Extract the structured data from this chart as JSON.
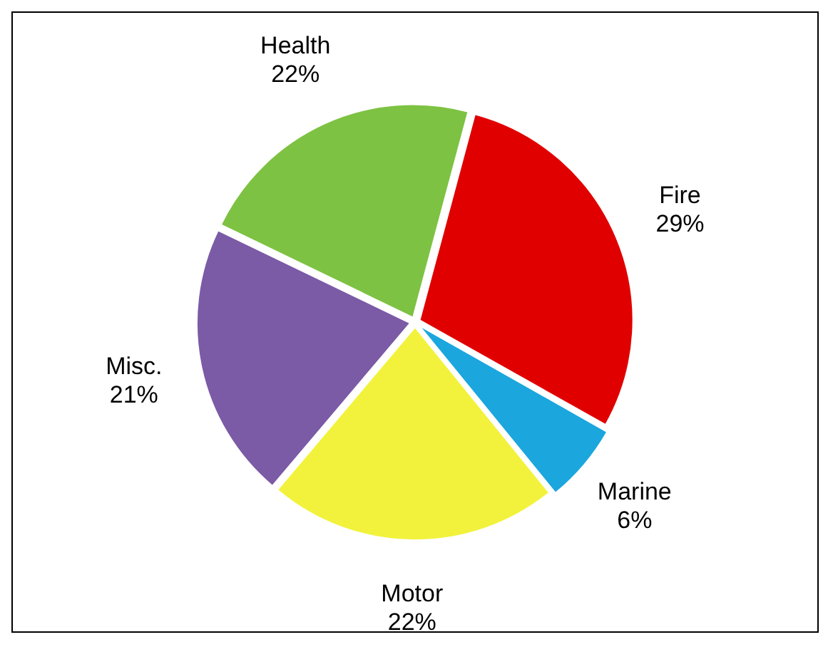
{
  "chart_data": {
    "type": "pie",
    "categories": [
      "Fire",
      "Marine",
      "Motor",
      "Misc.",
      "Health"
    ],
    "values": [
      29,
      6,
      22,
      21,
      22
    ],
    "value_labels": [
      "29%",
      "6%",
      "22%",
      "21%",
      "22%"
    ],
    "colors": [
      "#e00000",
      "#1ba6de",
      "#f2f23c",
      "#7b5aa6",
      "#7dc242"
    ],
    "legend": false
  }
}
